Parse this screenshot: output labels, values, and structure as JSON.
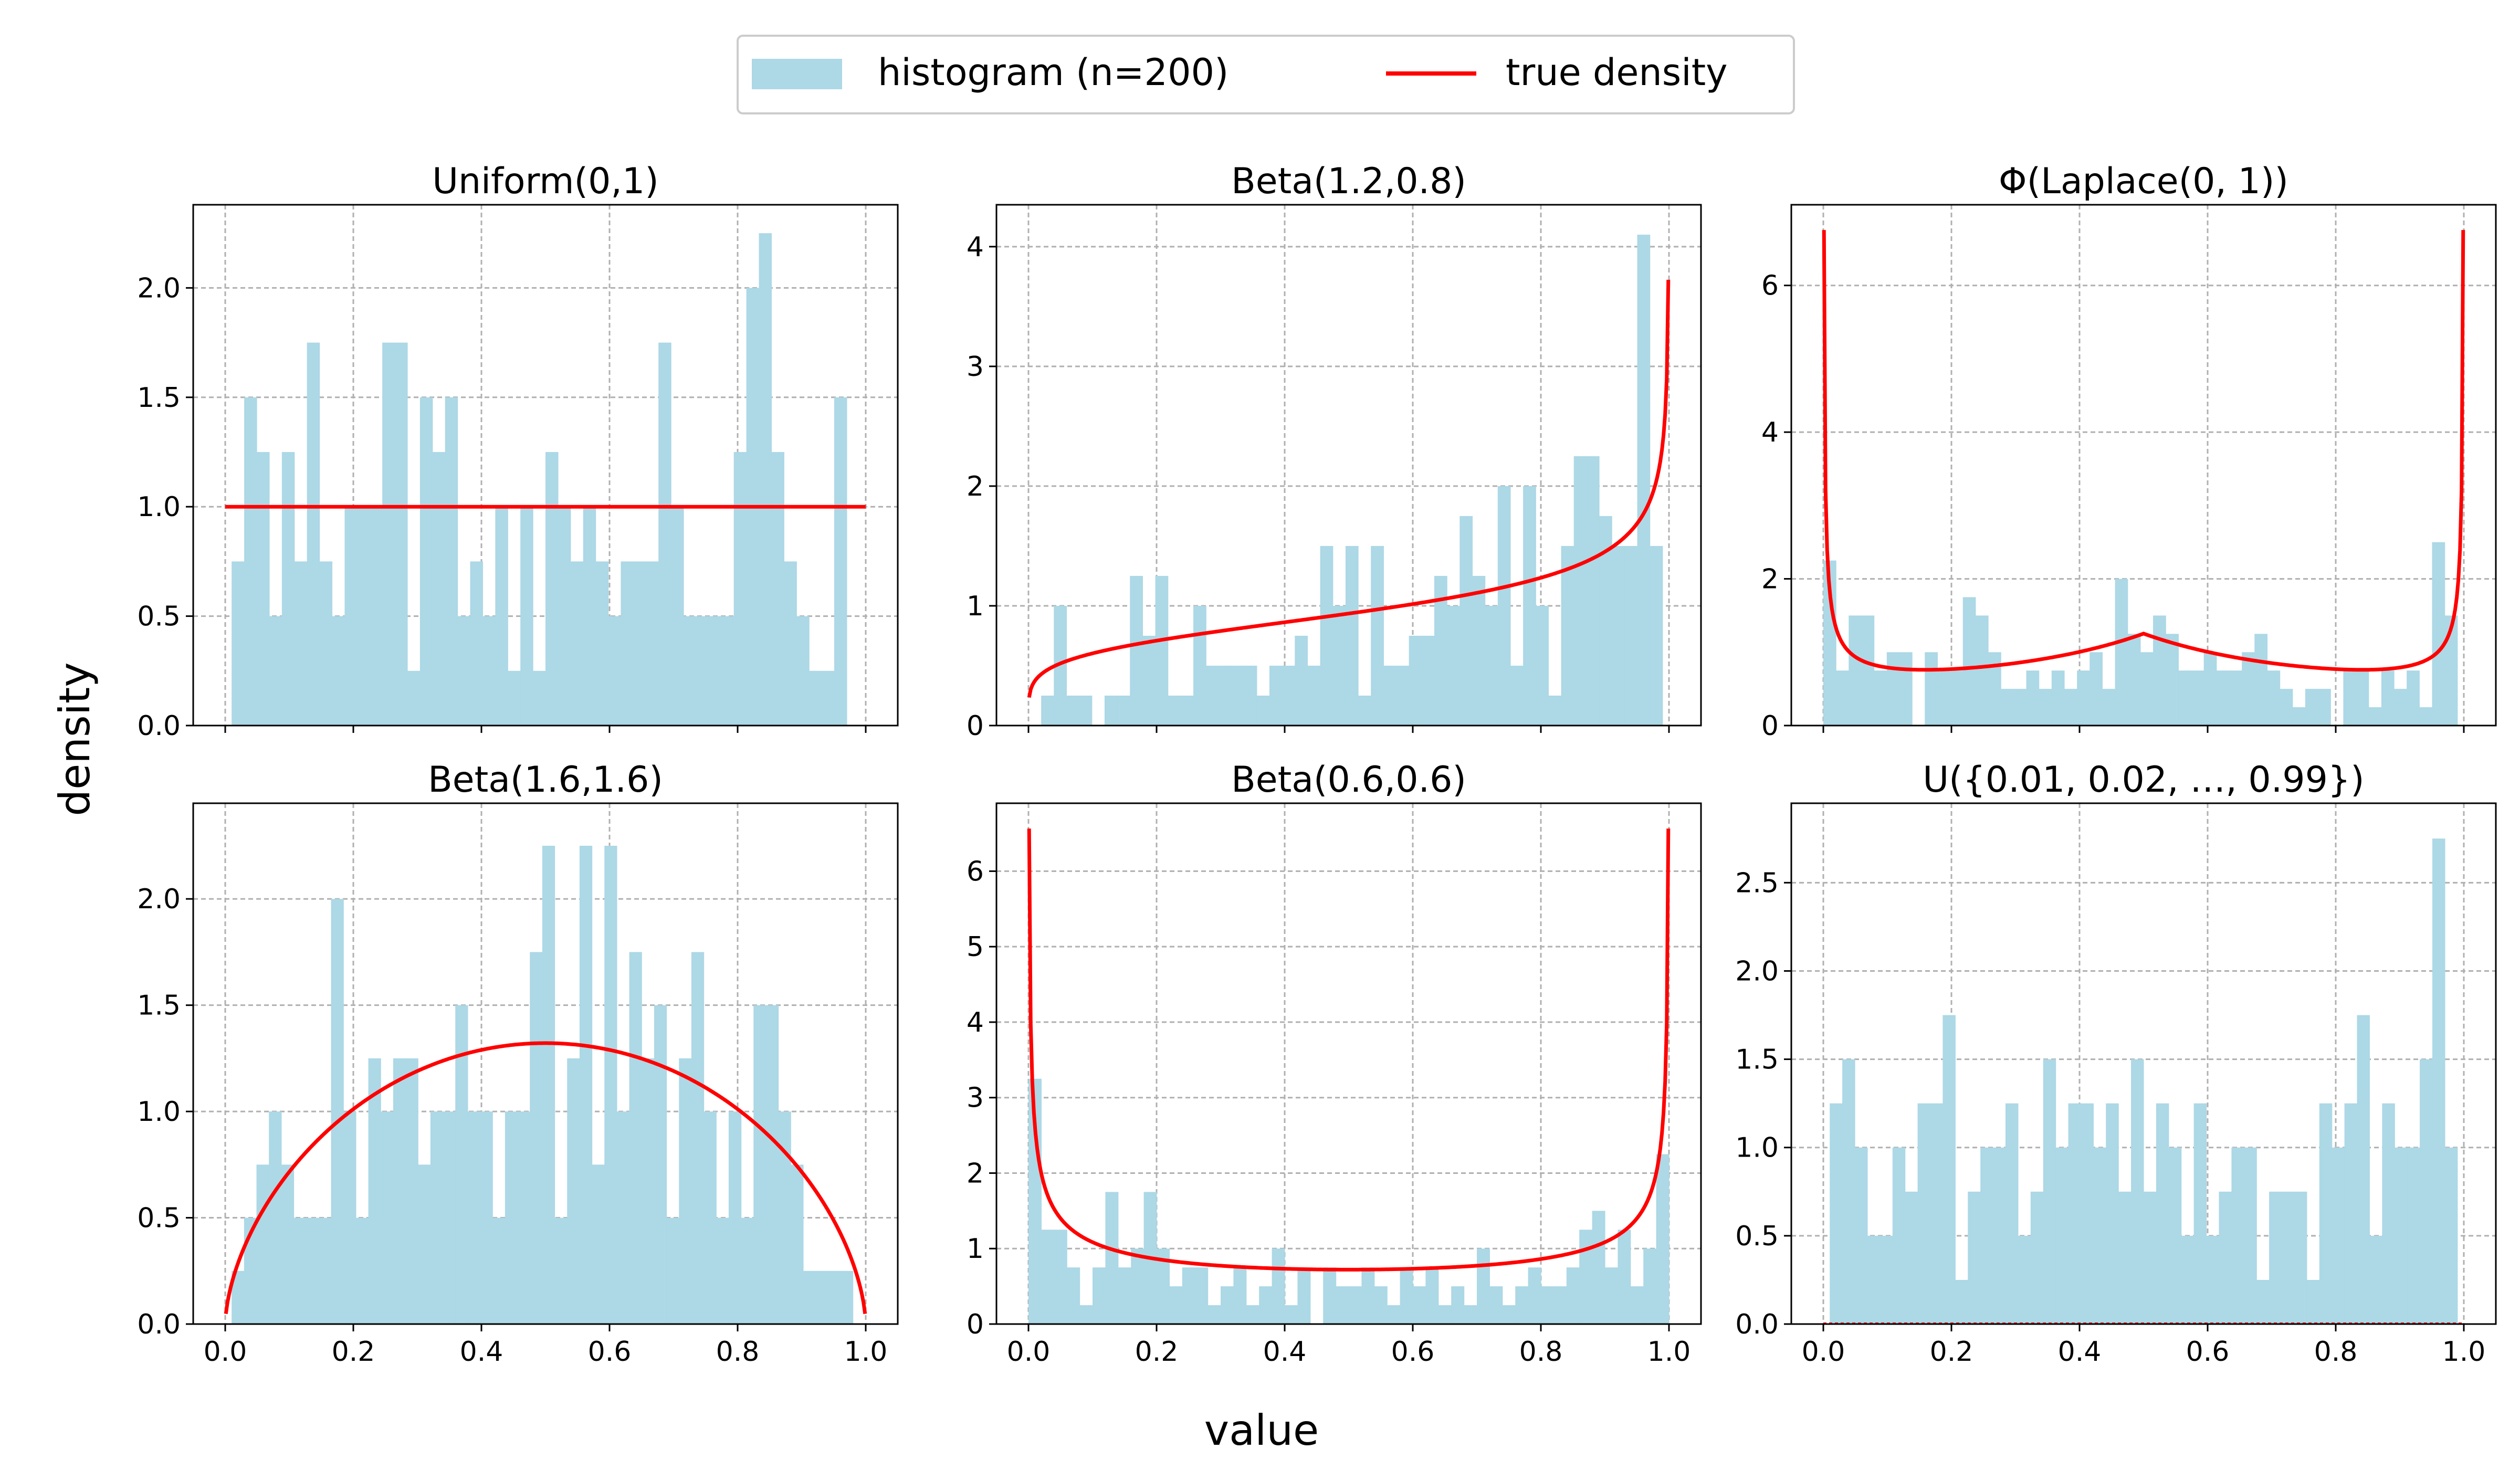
{
  "figure": {
    "xlabel": "value",
    "ylabel": "density",
    "legend": {
      "position": "top-center",
      "items": [
        {
          "label": "histogram (n=200)",
          "kind": "patch",
          "color": "#add8e6"
        },
        {
          "label": "true density",
          "kind": "line",
          "color": "#ff0000"
        }
      ]
    },
    "bar_color": "#add8e6",
    "line_color": "#ff0000",
    "grid": true
  },
  "chart_data": [
    {
      "type": "bar",
      "title": "Uniform(0,1)",
      "bins": 50,
      "bin_range": [
        0.01,
        0.99
      ],
      "xlim": [
        -0.05,
        1.05
      ],
      "ylim": [
        0,
        2.38
      ],
      "yticks": [
        0.0,
        0.5,
        1.0,
        1.5,
        2.0
      ],
      "ytick_labels": [
        "0.0",
        "0.5",
        "1.0",
        "1.5",
        "2.0"
      ],
      "xticks": [
        0.0,
        0.2,
        0.4,
        0.6,
        0.8,
        1.0
      ],
      "xtick_labels": [],
      "values": [
        0.75,
        1.5,
        1.25,
        0.5,
        1.25,
        0.75,
        1.75,
        0.75,
        0.5,
        1.0,
        1.0,
        1.0,
        1.75,
        1.75,
        0.25,
        1.5,
        1.25,
        1.5,
        0.5,
        0.75,
        0.5,
        1.0,
        0.25,
        1.0,
        0.25,
        1.25,
        1.0,
        0.75,
        1.0,
        0.75,
        0.5,
        0.75,
        0.75,
        0.75,
        1.75,
        1.0,
        0.5,
        0.5,
        0.5,
        0.5,
        1.25,
        2.0,
        2.25,
        1.25,
        0.75,
        0.5,
        0.25,
        0.25,
        1.5,
        0.0
      ],
      "density": {
        "kind": "uniform"
      }
    },
    {
      "type": "bar",
      "title": "Beta(1.2,0.8)",
      "bins": 50,
      "bin_range": [
        0.0,
        0.99
      ],
      "xlim": [
        -0.05,
        1.05
      ],
      "ylim": [
        0,
        4.35
      ],
      "yticks": [
        0,
        1,
        2,
        3,
        4
      ],
      "ytick_labels": [
        "0",
        "1",
        "2",
        "3",
        "4"
      ],
      "xticks": [
        0.0,
        0.2,
        0.4,
        0.6,
        0.8,
        1.0
      ],
      "xtick_labels": [],
      "values": [
        0.0,
        0.25,
        1.0,
        0.25,
        0.25,
        0.0,
        0.25,
        0.25,
        1.25,
        0.75,
        1.25,
        0.25,
        0.25,
        1.0,
        0.5,
        0.5,
        0.5,
        0.5,
        0.25,
        0.5,
        0.5,
        0.75,
        0.5,
        1.5,
        1.0,
        1.5,
        0.25,
        1.5,
        0.5,
        0.5,
        0.75,
        0.75,
        1.25,
        1.0,
        1.75,
        1.25,
        1.0,
        2.0,
        0.5,
        2.0,
        1.0,
        0.25,
        1.5,
        2.25,
        2.25,
        1.75,
        1.5,
        1.5,
        4.1,
        1.5
      ],
      "density": {
        "kind": "beta",
        "a": 1.2,
        "b": 0.8
      }
    },
    {
      "type": "bar",
      "title": "Φ(Laplace(0, 1))",
      "bins": 50,
      "bin_range": [
        0.0,
        0.99
      ],
      "xlim": [
        -0.05,
        1.05
      ],
      "ylim": [
        0,
        7.1
      ],
      "yticks": [
        0,
        2,
        4,
        6
      ],
      "ytick_labels": [
        "0",
        "2",
        "4",
        "6"
      ],
      "xticks": [
        0.0,
        0.2,
        0.4,
        0.6,
        0.8,
        1.0
      ],
      "xtick_labels": [],
      "values": [
        2.25,
        0.75,
        1.5,
        1.5,
        0.75,
        1.0,
        1.0,
        0.0,
        1.0,
        0.75,
        0.75,
        1.75,
        1.5,
        1.0,
        0.5,
        0.5,
        0.75,
        0.5,
        0.75,
        0.5,
        0.75,
        1.0,
        0.5,
        2.0,
        1.25,
        1.0,
        1.5,
        1.25,
        0.75,
        0.75,
        1.0,
        0.75,
        0.75,
        1.0,
        1.25,
        0.75,
        0.5,
        0.25,
        0.5,
        0.5,
        0.0,
        0.75,
        0.75,
        0.25,
        0.75,
        0.5,
        0.75,
        0.25,
        2.5,
        1.5
      ],
      "density": {
        "kind": "phi_laplace"
      }
    },
    {
      "type": "bar",
      "title": "Beta(1.6,1.6)",
      "bins": 50,
      "bin_range": [
        0.01,
        0.98
      ],
      "xlim": [
        -0.05,
        1.05
      ],
      "ylim": [
        0,
        2.45
      ],
      "yticks": [
        0.0,
        0.5,
        1.0,
        1.5,
        2.0
      ],
      "ytick_labels": [
        "0.0",
        "0.5",
        "1.0",
        "1.5",
        "2.0"
      ],
      "xticks": [
        0.0,
        0.2,
        0.4,
        0.6,
        0.8,
        1.0
      ],
      "xtick_labels": [
        "0.0",
        "0.2",
        "0.4",
        "0.6",
        "0.8",
        "1.0"
      ],
      "values": [
        0.25,
        0.5,
        0.75,
        1.0,
        0.75,
        0.5,
        0.5,
        0.5,
        2.0,
        1.0,
        0.5,
        1.25,
        1.0,
        1.25,
        1.25,
        0.75,
        1.0,
        1.0,
        1.5,
        1.0,
        1.0,
        0.5,
        1.0,
        1.0,
        1.75,
        2.25,
        0.5,
        1.25,
        2.25,
        0.75,
        2.25,
        1.0,
        1.75,
        1.25,
        1.5,
        0.5,
        1.25,
        1.75,
        1.0,
        0.5,
        1.0,
        0.5,
        1.5,
        1.5,
        1.0,
        0.75,
        0.25,
        0.25,
        0.25,
        0.25
      ],
      "density": {
        "kind": "beta",
        "a": 1.6,
        "b": 1.6
      }
    },
    {
      "type": "bar",
      "title": "Beta(0.6,0.6)",
      "bins": 50,
      "bin_range": [
        0.0,
        1.0
      ],
      "xlim": [
        -0.05,
        1.05
      ],
      "ylim": [
        0,
        6.9
      ],
      "yticks": [
        0,
        1,
        2,
        3,
        4,
        5,
        6
      ],
      "ytick_labels": [
        "0",
        "1",
        "2",
        "3",
        "4",
        "5",
        "6"
      ],
      "xticks": [
        0.0,
        0.2,
        0.4,
        0.6,
        0.8,
        1.0
      ],
      "xtick_labels": [
        "0.0",
        "0.2",
        "0.4",
        "0.6",
        "0.8",
        "1.0"
      ],
      "values": [
        3.25,
        1.25,
        1.25,
        0.75,
        0.25,
        0.75,
        1.75,
        0.75,
        1.0,
        1.75,
        1.0,
        0.5,
        0.75,
        0.75,
        0.25,
        0.5,
        0.75,
        0.25,
        0.5,
        1.0,
        0.25,
        0.75,
        0.0,
        0.75,
        0.5,
        0.5,
        0.75,
        0.5,
        0.25,
        0.75,
        0.5,
        0.75,
        0.25,
        0.5,
        0.25,
        1.0,
        0.5,
        0.25,
        0.5,
        0.75,
        0.5,
        0.5,
        0.75,
        1.25,
        1.5,
        0.75,
        1.25,
        0.5,
        1.0,
        2.25
      ],
      "density": {
        "kind": "beta",
        "a": 0.6,
        "b": 0.6
      }
    },
    {
      "type": "bar",
      "title": "U({0.01, 0.02, …, 0.99})",
      "bins": 50,
      "bin_range": [
        0.01,
        0.99
      ],
      "xlim": [
        -0.05,
        1.05
      ],
      "ylim": [
        0,
        2.95
      ],
      "yticks": [
        0.0,
        0.5,
        1.0,
        1.5,
        2.0,
        2.5
      ],
      "ytick_labels": [
        "0.0",
        "0.5",
        "1.0",
        "1.5",
        "2.0",
        "2.5"
      ],
      "xticks": [
        0.0,
        0.2,
        0.4,
        0.6,
        0.8,
        1.0
      ],
      "xtick_labels": [
        "0.0",
        "0.2",
        "0.4",
        "0.6",
        "0.8",
        "1.0"
      ],
      "values": [
        1.25,
        1.5,
        1.0,
        0.5,
        0.5,
        1.0,
        0.75,
        1.25,
        1.25,
        1.75,
        0.25,
        0.75,
        1.0,
        1.0,
        1.25,
        0.5,
        0.75,
        1.5,
        1.0,
        1.25,
        1.25,
        1.0,
        1.25,
        0.75,
        1.5,
        0.75,
        1.25,
        1.0,
        0.5,
        1.25,
        0.5,
        0.75,
        1.0,
        1.0,
        0.25,
        0.75,
        0.75,
        0.75,
        0.25,
        1.25,
        1.0,
        1.25,
        1.75,
        0.5,
        1.25,
        1.0,
        1.0,
        1.5,
        2.75,
        1.0
      ],
      "density": {
        "kind": "discrete_zero"
      }
    }
  ]
}
